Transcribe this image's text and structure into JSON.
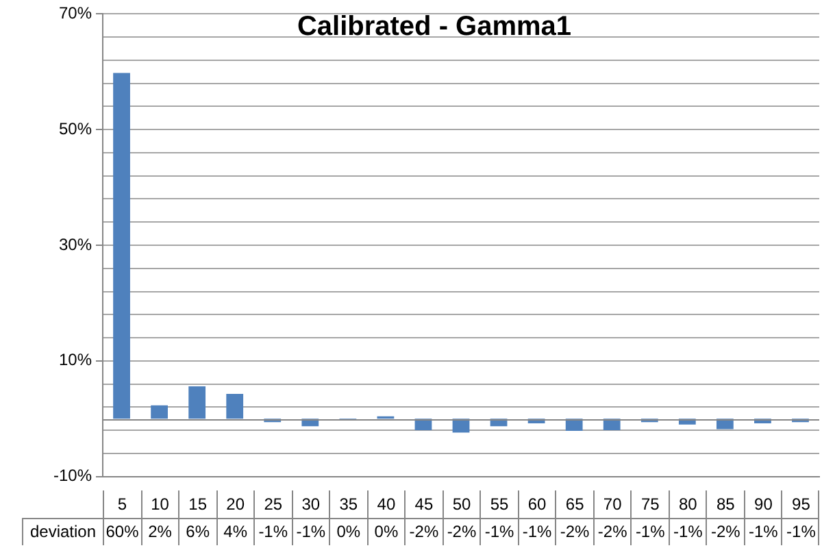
{
  "chart_data": {
    "type": "bar",
    "title": "Calibrated - Gamma1",
    "categories": [
      "5",
      "10",
      "15",
      "20",
      "25",
      "30",
      "35",
      "40",
      "45",
      "50",
      "55",
      "60",
      "65",
      "70",
      "75",
      "80",
      "85",
      "90",
      "95"
    ],
    "series": [
      {
        "name": "deviation",
        "color": "#4f81bd",
        "values": [
          59.8,
          2.3,
          5.6,
          4.3,
          -0.6,
          -1.3,
          -0.3,
          0.4,
          -2.0,
          -2.4,
          -1.3,
          -0.8,
          -2.1,
          -2.0,
          -0.6,
          -1.0,
          -1.8,
          -0.8,
          -0.6
        ],
        "value_labels": [
          "60%",
          "2%",
          "6%",
          "4%",
          "-1%",
          "-1%",
          "0%",
          "0%",
          "-2%",
          "-2%",
          "-1%",
          "-1%",
          "-2%",
          "-2%",
          "-1%",
          "-1%",
          "-2%",
          "-1%",
          "-1%"
        ]
      }
    ],
    "ylim": [
      -10,
      70
    ],
    "yticks": [
      {
        "value": -10,
        "label": "-10%"
      },
      {
        "value": -6,
        "label": null
      },
      {
        "value": -2,
        "label": null
      },
      {
        "value": 2,
        "label": null
      },
      {
        "value": 6,
        "label": null
      },
      {
        "value": 10,
        "label": "10%"
      },
      {
        "value": 14,
        "label": null
      },
      {
        "value": 18,
        "label": null
      },
      {
        "value": 22,
        "label": null
      },
      {
        "value": 26,
        "label": null
      },
      {
        "value": 30,
        "label": "30%"
      },
      {
        "value": 34,
        "label": null
      },
      {
        "value": 38,
        "label": null
      },
      {
        "value": 42,
        "label": null
      },
      {
        "value": 46,
        "label": null
      },
      {
        "value": 50,
        "label": "50%"
      },
      {
        "value": 54,
        "label": null
      },
      {
        "value": 58,
        "label": null
      },
      {
        "value": 62,
        "label": null
      },
      {
        "value": 66,
        "label": null
      },
      {
        "value": 70,
        "label": "70%"
      }
    ],
    "grid": "y",
    "legend": false
  }
}
